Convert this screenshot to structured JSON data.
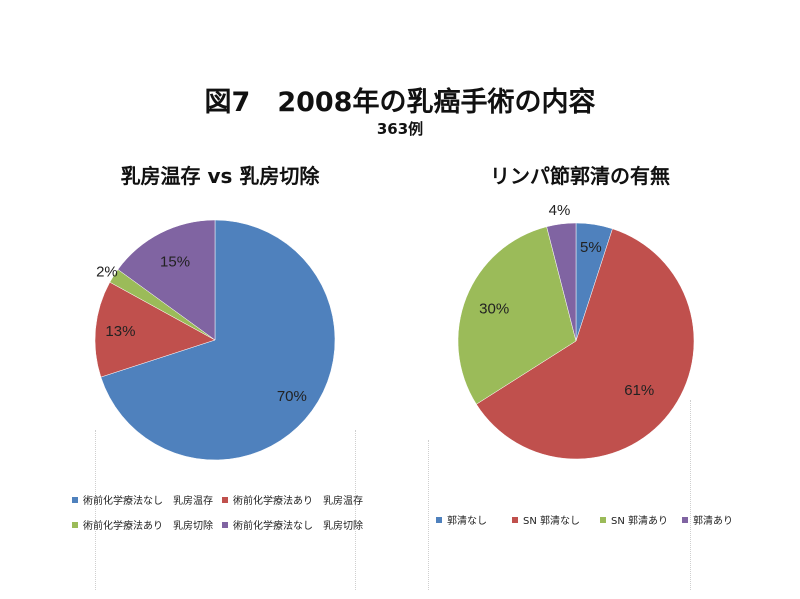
{
  "header": {
    "title": "図7　2008年の乳癌手術の内容",
    "subtitle": "363例"
  },
  "chart_data": [
    {
      "type": "pie",
      "title": "乳房温存 vs 乳房切除",
      "slices": [
        {
          "label": "術前化学療法なし　乳房温存",
          "value": 70,
          "text": "70%",
          "color": "#4f81bd"
        },
        {
          "label": "術前化学療法あり　乳房温存",
          "value": 13,
          "text": "13%",
          "color": "#c0504d"
        },
        {
          "label": "術前化学療法あり　乳房切除",
          "value": 2,
          "text": "2%",
          "color": "#9bbb59"
        },
        {
          "label": "術前化学療法なし　乳房切除",
          "value": 15,
          "text": "15%",
          "color": "#8064a2"
        }
      ],
      "legend_placement": "bottom"
    },
    {
      "type": "pie",
      "title": "リンパ節郭清の有無",
      "slices": [
        {
          "label": "郭清なし",
          "value": 5,
          "text": "5%",
          "color": "#4f81bd"
        },
        {
          "label": "SN 郭清なし",
          "value": 61,
          "text": "61%",
          "color": "#c0504d"
        },
        {
          "label": "SN 郭清あり",
          "value": 30,
          "text": "30%",
          "color": "#9bbb59"
        },
        {
          "label": "郭清あり",
          "value": 4,
          "text": "4%",
          "color": "#8064a2"
        }
      ],
      "legend_placement": "bottom"
    }
  ]
}
